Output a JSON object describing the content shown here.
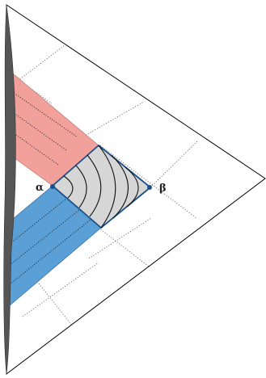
{
  "labels": {
    "alpha": "α",
    "beta": "β"
  },
  "colors": {
    "outline": "#000000",
    "boundary_fill": "#555555",
    "red_band": "#f2a09a",
    "blue_band": "#5aa0d6",
    "diamond_fill": "#d6d6d6",
    "diamond_stroke": "#1b4f8a",
    "point": "#1b4f8a",
    "grid": "#444444"
  }
}
